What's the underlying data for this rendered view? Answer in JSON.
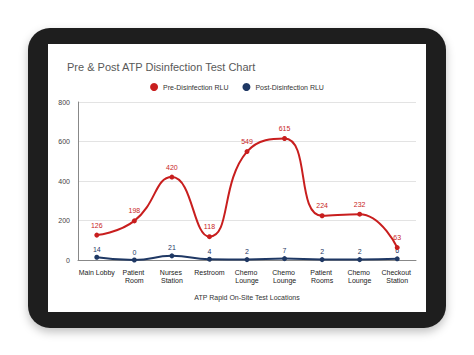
{
  "chart_data": {
    "type": "line",
    "title": "Pre & Post ATP Disinfection Test Chart",
    "x_label": "ATP Rapid On-Site Test Locations",
    "categories": [
      "Main Lobby",
      "Patient Room",
      "Nurses Station",
      "Restroom",
      "Chemo Lounge",
      "Chemo Lounge",
      "Patient Rooms",
      "Chemo Lounge",
      "Checkout Station"
    ],
    "series": [
      {
        "name": "Pre-Disinfection RLU",
        "color": "#c81e1e",
        "values": [
          126,
          198,
          420,
          118,
          549,
          615,
          224,
          232,
          63
        ]
      },
      {
        "name": "Post-Disinfection RLU",
        "color": "#1f3864",
        "values": [
          14,
          0,
          21,
          4,
          2,
          7,
          2,
          2,
          6
        ]
      }
    ],
    "ylim": [
      0,
      800
    ],
    "yticks": [
      0,
      200,
      400,
      600,
      800
    ],
    "grid": true,
    "legend": "top",
    "data_labels": true,
    "marker": "circle",
    "line_style": "smooth"
  }
}
